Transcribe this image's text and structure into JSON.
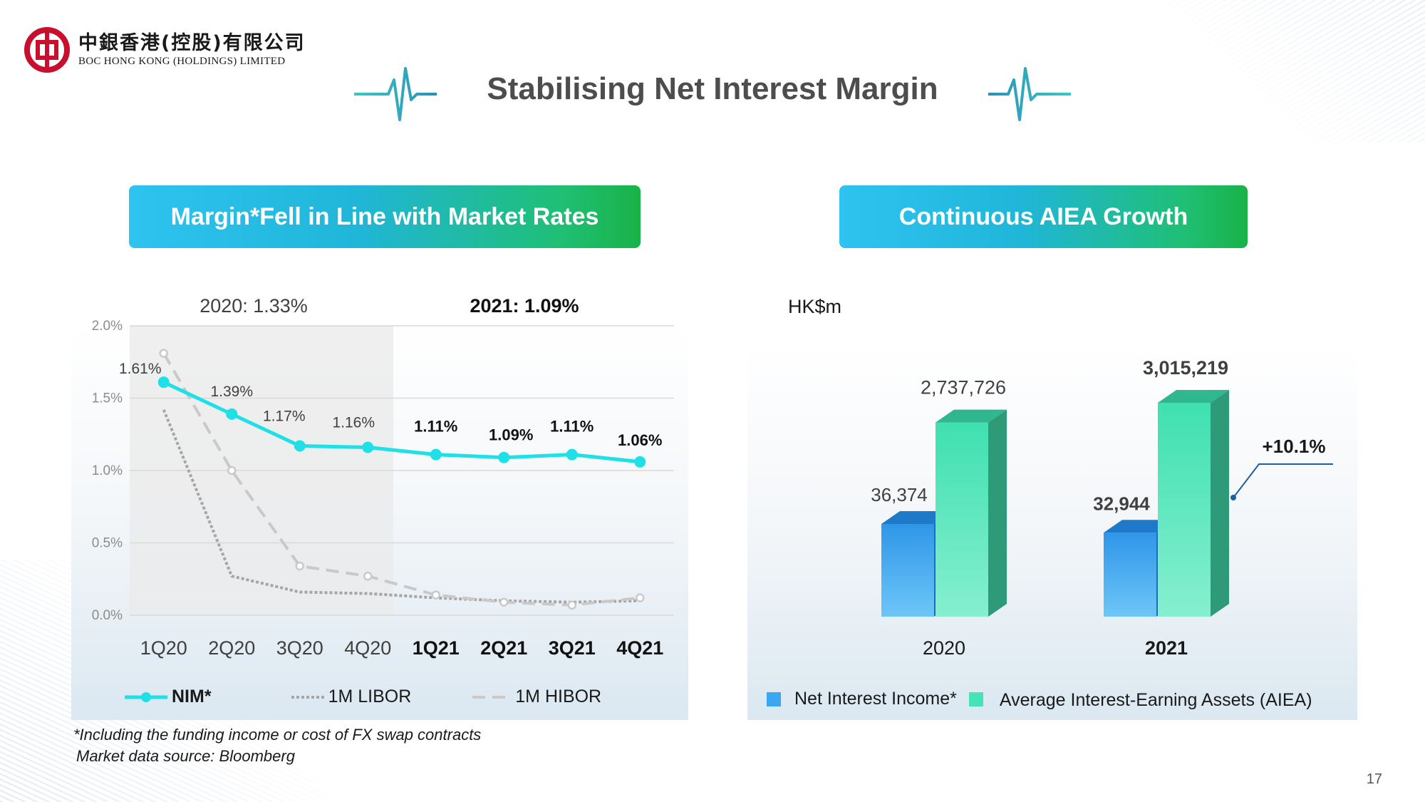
{
  "header": {
    "logo_cn": "中銀香港(控股)有限公司",
    "logo_en": "BOC HONG KONG (HOLDINGS) LIMITED",
    "title": "Stabilising Net Interest Margin"
  },
  "colors": {
    "brand_red": "#c8102e",
    "nim": "#1ee0e6",
    "libor": "#a6a6a6",
    "hibor": "#c9c9c9",
    "nii_bar": "#3aa8f0",
    "aiea_bar": "#45e3b5"
  },
  "left_panel": {
    "banner": "Margin*Fell in Line with Market Rates",
    "legend": {
      "nim": "NIM*",
      "libor": "1M LIBOR",
      "hibor": "1M HIBOR"
    },
    "footnote_1": "*Including the funding income or cost of FX swap contracts",
    "footnote_2": "Market data source: Bloomberg"
  },
  "right_panel": {
    "banner": "Continuous AIEA Growth",
    "unit": "HK$m",
    "growth_label": "+10.1%",
    "legend": {
      "nii": "Net Interest Income*",
      "aiea": "Average Interest-Earning Assets (AIEA)"
    }
  },
  "page_number": "17",
  "chart_data": [
    {
      "type": "line",
      "title": "Margin*Fell in Line with Market Rates",
      "categories": [
        "1Q20",
        "2Q20",
        "3Q20",
        "4Q20",
        "1Q21",
        "2Q21",
        "3Q21",
        "4Q21"
      ],
      "bold_categories": [
        "1Q21",
        "2Q21",
        "3Q21",
        "4Q21"
      ],
      "annotations": [
        "2020: 1.33%",
        "2021: 1.09%"
      ],
      "y_ticks": [
        "0.0%",
        "0.5%",
        "1.0%",
        "1.5%",
        "2.0%"
      ],
      "ylim": [
        0,
        2.0
      ],
      "series": [
        {
          "name": "NIM*",
          "values": [
            1.61,
            1.39,
            1.17,
            1.16,
            1.11,
            1.09,
            1.11,
            1.06
          ],
          "labels": [
            "1.61%",
            "1.39%",
            "1.17%",
            "1.16%",
            "1.11%",
            "1.09%",
            "1.11%",
            "1.06%"
          ]
        },
        {
          "name": "1M LIBOR",
          "values": [
            1.42,
            0.27,
            0.16,
            0.15,
            0.12,
            0.1,
            0.09,
            0.1
          ]
        },
        {
          "name": "1M HIBOR",
          "values": [
            1.81,
            1.0,
            0.34,
            0.27,
            0.14,
            0.09,
            0.07,
            0.12
          ]
        }
      ]
    },
    {
      "type": "bar",
      "title": "Continuous AIEA Growth",
      "ylabel": "HK$m",
      "categories": [
        "2020",
        "2021"
      ],
      "series": [
        {
          "name": "Net Interest Income*",
          "values": [
            36374,
            32944
          ],
          "labels": [
            "36,374",
            "32,944"
          ]
        },
        {
          "name": "Average Interest-Earning Assets (AIEA)",
          "values": [
            2737726,
            3015219
          ],
          "labels": [
            "2,737,726",
            "3,015,219"
          ]
        }
      ],
      "growth": "+10.1%"
    }
  ]
}
